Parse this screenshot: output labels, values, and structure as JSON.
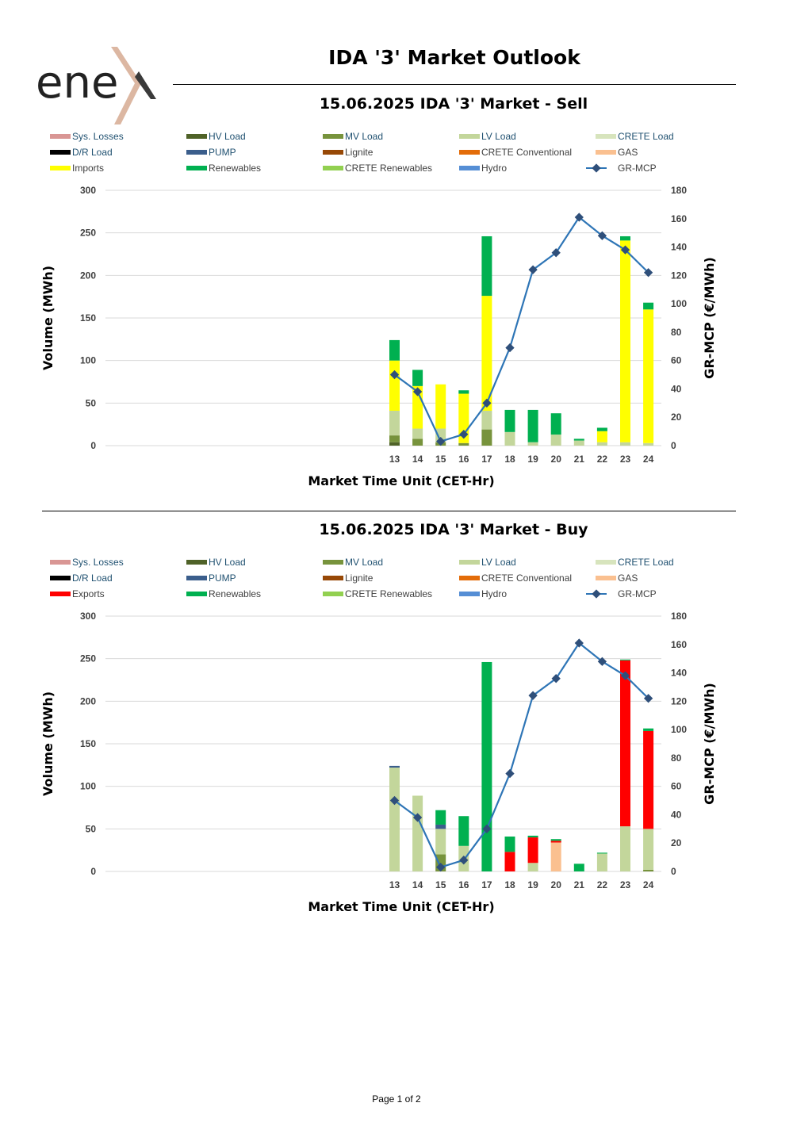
{
  "page": {
    "title": "IDA '3' Market Outlook",
    "footer": "Page 1 of 2",
    "logo_text": "ene"
  },
  "chart_data": [
    {
      "type": "bar",
      "title": "15.06.2025  IDA '3' Market - Sell",
      "xlabel": "Market Time Unit (CET-Hr)",
      "ylabel": "Volume (MWh)",
      "y2label": "GR-MCP (€/MWh)",
      "ylim": [
        0,
        300
      ],
      "y2lim": [
        0,
        180
      ],
      "yticks": [
        0,
        50,
        100,
        150,
        200,
        250,
        300
      ],
      "y2ticks": [
        0,
        20,
        40,
        60,
        80,
        100,
        120,
        140,
        160,
        180
      ],
      "categories": [
        "13",
        "14",
        "15",
        "16",
        "17",
        "18",
        "19",
        "20",
        "21",
        "22",
        "23",
        "24"
      ],
      "legend": [
        {
          "name": "Sys. Losses",
          "color": "#d99694"
        },
        {
          "name": "HV Load",
          "color": "#4f6228"
        },
        {
          "name": "MV Load",
          "color": "#77933c"
        },
        {
          "name": "LV Load",
          "color": "#c3d69b"
        },
        {
          "name": "CRETE Load",
          "color": "#d7e4bd"
        },
        {
          "name": "D/R Load",
          "color": "#000000"
        },
        {
          "name": "PUMP",
          "color": "#3b5e8c"
        },
        {
          "name": "Lignite",
          "color": "#974806"
        },
        {
          "name": "CRETE Conventional",
          "color": "#e36c09"
        },
        {
          "name": "GAS",
          "color": "#fac090"
        },
        {
          "name": "Imports",
          "color": "#ffff00"
        },
        {
          "name": "Renewables",
          "color": "#00b050"
        },
        {
          "name": "CRETE Renewables",
          "color": "#92d050"
        },
        {
          "name": "Hydro",
          "color": "#558ed5"
        },
        {
          "name": "GR-MCP",
          "color": "#2e75b6",
          "line": true
        }
      ],
      "series": [
        {
          "name": "HV Load",
          "color": "#4f6228",
          "values": [
            4,
            0,
            0,
            0,
            0,
            0,
            0,
            0,
            0,
            0,
            0,
            0
          ]
        },
        {
          "name": "MV Load",
          "color": "#77933c",
          "values": [
            8,
            8,
            4,
            3,
            19,
            0,
            0,
            0,
            0,
            0,
            0,
            0
          ]
        },
        {
          "name": "LV Load",
          "color": "#c3d69b",
          "values": [
            29,
            12,
            16,
            0,
            22,
            16,
            4,
            13,
            6,
            4,
            4,
            3
          ]
        },
        {
          "name": "Imports",
          "color": "#ffff00",
          "values": [
            59,
            50,
            52,
            58,
            135,
            0,
            0,
            0,
            0,
            13,
            237,
            157
          ]
        },
        {
          "name": "Renewables",
          "color": "#00b050",
          "values": [
            24,
            19,
            0,
            4,
            70,
            26,
            38,
            25,
            2,
            4,
            5,
            8
          ]
        }
      ],
      "line_series": {
        "name": "GR-MCP",
        "color": "#2e75b6",
        "values": [
          50,
          38,
          3,
          8,
          30,
          69,
          124,
          136,
          161,
          148,
          138,
          122
        ]
      }
    },
    {
      "type": "bar",
      "title": "15.06.2025  IDA '3' Market - Buy",
      "xlabel": "Market Time Unit (CET-Hr)",
      "ylabel": "Volume (MWh)",
      "y2label": "GR-MCP (€/MWh)",
      "ylim": [
        0,
        300
      ],
      "y2lim": [
        0,
        180
      ],
      "yticks": [
        0,
        50,
        100,
        150,
        200,
        250,
        300
      ],
      "y2ticks": [
        0,
        20,
        40,
        60,
        80,
        100,
        120,
        140,
        160,
        180
      ],
      "categories": [
        "13",
        "14",
        "15",
        "16",
        "17",
        "18",
        "19",
        "20",
        "21",
        "22",
        "23",
        "24"
      ],
      "legend": [
        {
          "name": "Sys. Losses",
          "color": "#d99694"
        },
        {
          "name": "HV Load",
          "color": "#4f6228"
        },
        {
          "name": "MV Load",
          "color": "#77933c"
        },
        {
          "name": "LV Load",
          "color": "#c3d69b"
        },
        {
          "name": "CRETE Load",
          "color": "#d7e4bd"
        },
        {
          "name": "D/R Load",
          "color": "#000000"
        },
        {
          "name": "PUMP",
          "color": "#3b5e8c"
        },
        {
          "name": "Lignite",
          "color": "#974806"
        },
        {
          "name": "CRETE Conventional",
          "color": "#e36c09"
        },
        {
          "name": "GAS",
          "color": "#fac090"
        },
        {
          "name": "Exports",
          "color": "#ff0000"
        },
        {
          "name": "Renewables",
          "color": "#00b050"
        },
        {
          "name": "CRETE Renewables",
          "color": "#92d050"
        },
        {
          "name": "Hydro",
          "color": "#558ed5"
        },
        {
          "name": "GR-MCP",
          "color": "#2e75b6",
          "line": true
        }
      ],
      "series": [
        {
          "name": "HV Load",
          "color": "#4f6228",
          "values": [
            0,
            0,
            0,
            0,
            0,
            0,
            0,
            0,
            0,
            0,
            0,
            0
          ]
        },
        {
          "name": "MV Load",
          "color": "#77933c",
          "values": [
            0,
            0,
            20,
            0,
            0,
            0,
            0,
            0,
            0,
            0,
            0,
            2
          ]
        },
        {
          "name": "LV Load",
          "color": "#c3d69b",
          "values": [
            122,
            89,
            30,
            30,
            0,
            0,
            10,
            0,
            0,
            21,
            53,
            48
          ]
        },
        {
          "name": "GAS",
          "color": "#fac090",
          "values": [
            0,
            0,
            0,
            0,
            0,
            0,
            0,
            34,
            0,
            0,
            0,
            0
          ]
        },
        {
          "name": "PUMP",
          "color": "#3b5e8c",
          "values": [
            2,
            0,
            5,
            0,
            0,
            0,
            0,
            0,
            0,
            0,
            0,
            0
          ]
        },
        {
          "name": "Exports",
          "color": "#ff0000",
          "values": [
            0,
            0,
            0,
            0,
            0,
            23,
            30,
            2,
            0,
            0,
            195,
            115
          ]
        },
        {
          "name": "Renewables",
          "color": "#00b050",
          "values": [
            0,
            0,
            17,
            35,
            246,
            18,
            2,
            2,
            9,
            1,
            1,
            3
          ]
        }
      ],
      "line_series": {
        "name": "GR-MCP",
        "color": "#2e75b6",
        "values": [
          50,
          38,
          3,
          8,
          30,
          69,
          124,
          136,
          161,
          148,
          138,
          122
        ]
      }
    }
  ]
}
